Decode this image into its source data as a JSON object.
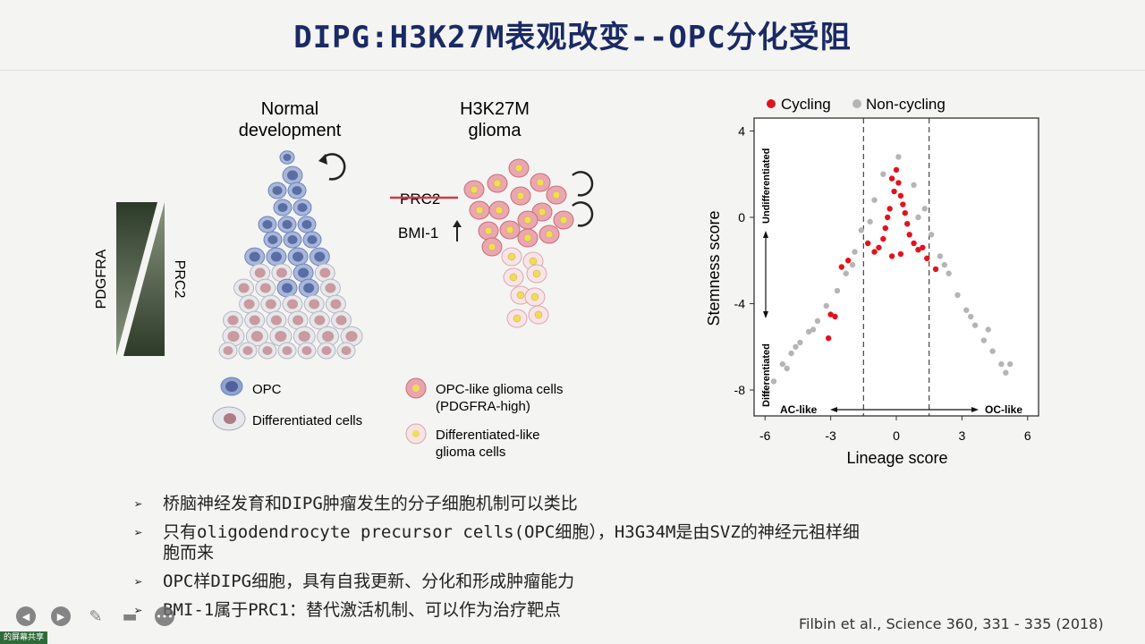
{
  "title": "DIPG:H3K27M表观改变--OPC分化受阻",
  "left_figure": {
    "gradient_labels": [
      "PDGFRA",
      "PRC2"
    ],
    "normal_header": [
      "Normal",
      "development"
    ],
    "glioma_header": [
      "H3K27M",
      "glioma"
    ],
    "prc2_struck": "PRC2",
    "bmi1": "BMI-1",
    "legend": [
      {
        "lines": [
          "OPC"
        ]
      },
      {
        "lines": [
          "Differentiated cells"
        ]
      },
      {
        "lines": [
          "OPC-like glioma cells",
          "(PDGFRA-high)"
        ]
      },
      {
        "lines": [
          "Differentiated-like",
          "glioma cells"
        ]
      }
    ],
    "colors": {
      "opc": "#6d84b9",
      "diff": "#c99aa0",
      "glioma": "#e49aa4",
      "nucleus_yellow": "#f1dc5a"
    }
  },
  "chart_data": {
    "type": "scatter",
    "xlabel": "Lineage score",
    "ylabel": "Stemness score",
    "xlim": [
      -6.5,
      6.5
    ],
    "ylim": [
      -9.2,
      4.6
    ],
    "xticks": [
      -6,
      -3,
      0,
      3,
      6
    ],
    "yticks": [
      4,
      0,
      -4,
      -8
    ],
    "dashed_lines_x": [
      -1.5,
      1.5
    ],
    "series": [
      {
        "name": "Cycling",
        "color": "#e0141e",
        "points": [
          [
            0,
            2.2
          ],
          [
            -0.2,
            1.8
          ],
          [
            0.1,
            1.6
          ],
          [
            -0.1,
            1.2
          ],
          [
            0.2,
            1.0
          ],
          [
            0.3,
            0.6
          ],
          [
            -0.3,
            0.4
          ],
          [
            0.4,
            0.2
          ],
          [
            -0.4,
            0.0
          ],
          [
            0.5,
            -0.3
          ],
          [
            -0.5,
            -0.5
          ],
          [
            0.6,
            -0.8
          ],
          [
            -0.6,
            -1.0
          ],
          [
            0.8,
            -1.2
          ],
          [
            -0.8,
            -1.4
          ],
          [
            1.0,
            -1.5
          ],
          [
            -1.0,
            -1.6
          ],
          [
            0.2,
            -1.7
          ],
          [
            -0.2,
            -1.8
          ],
          [
            1.2,
            -1.4
          ],
          [
            -1.3,
            -1.2
          ],
          [
            -2.2,
            -2.0
          ],
          [
            -2.5,
            -2.3
          ],
          [
            -3.0,
            -4.5
          ],
          [
            -2.8,
            -4.6
          ],
          [
            -3.1,
            -5.6
          ],
          [
            1.4,
            -1.9
          ],
          [
            1.8,
            -2.4
          ]
        ]
      },
      {
        "name": "Non-cycling",
        "color": "#b5b5b5",
        "points": [
          [
            0.1,
            2.8
          ],
          [
            -0.6,
            2.0
          ],
          [
            0.8,
            1.5
          ],
          [
            -1.0,
            0.8
          ],
          [
            1.3,
            0.4
          ],
          [
            -1.6,
            -0.6
          ],
          [
            1.6,
            -0.8
          ],
          [
            -1.9,
            -1.6
          ],
          [
            2.0,
            -1.8
          ],
          [
            -2.3,
            -2.6
          ],
          [
            2.4,
            -2.6
          ],
          [
            -2.7,
            -3.4
          ],
          [
            2.8,
            -3.6
          ],
          [
            -3.2,
            -4.1
          ],
          [
            3.2,
            -4.3
          ],
          [
            -3.6,
            -4.8
          ],
          [
            3.6,
            -5.0
          ],
          [
            -4.0,
            -5.3
          ],
          [
            4.0,
            -5.7
          ],
          [
            -4.4,
            -5.8
          ],
          [
            4.4,
            -6.2
          ],
          [
            -4.8,
            -6.3
          ],
          [
            4.8,
            -6.8
          ],
          [
            -5.2,
            -6.8
          ],
          [
            5.0,
            -7.2
          ],
          [
            -5.6,
            -7.6
          ],
          [
            5.2,
            -6.8
          ],
          [
            -5.9,
            -8.1
          ],
          [
            -1.2,
            -0.2
          ],
          [
            1.0,
            0.0
          ],
          [
            -3.8,
            -5.2
          ],
          [
            -4.6,
            -6.0
          ],
          [
            -5.0,
            -7.0
          ],
          [
            -2.0,
            -2.2
          ],
          [
            2.2,
            -2.2
          ],
          [
            3.4,
            -4.6
          ],
          [
            4.2,
            -5.2
          ]
        ]
      }
    ],
    "annotations": {
      "undiff": "Undifferentiated",
      "diff": "Differentiated",
      "ac_like": "AC-like",
      "oc_like": "OC-like"
    }
  },
  "bullets": [
    {
      "lines": [
        "桥脑神经发育和DIPG肿瘤发生的分子细胞机制可以类比"
      ]
    },
    {
      "lines": [
        "只有oligodendrocyte precursor cells(OPC细胞），H3G34M是由SVZ的神经元祖样细",
        "胞而来"
      ]
    },
    {
      "lines": [
        "OPC样DIPG细胞，具有自我更新、分化和形成肿瘤能力"
      ]
    },
    {
      "lines": [
        "BMI-1属于PRC1：替代激活机制、可以作为治疗靶点"
      ]
    }
  ],
  "bullet_mark": "➢",
  "citation": "Filbin et al., Science 360, 331 - 335 (2018)",
  "user_tag": "的屏幕共享"
}
